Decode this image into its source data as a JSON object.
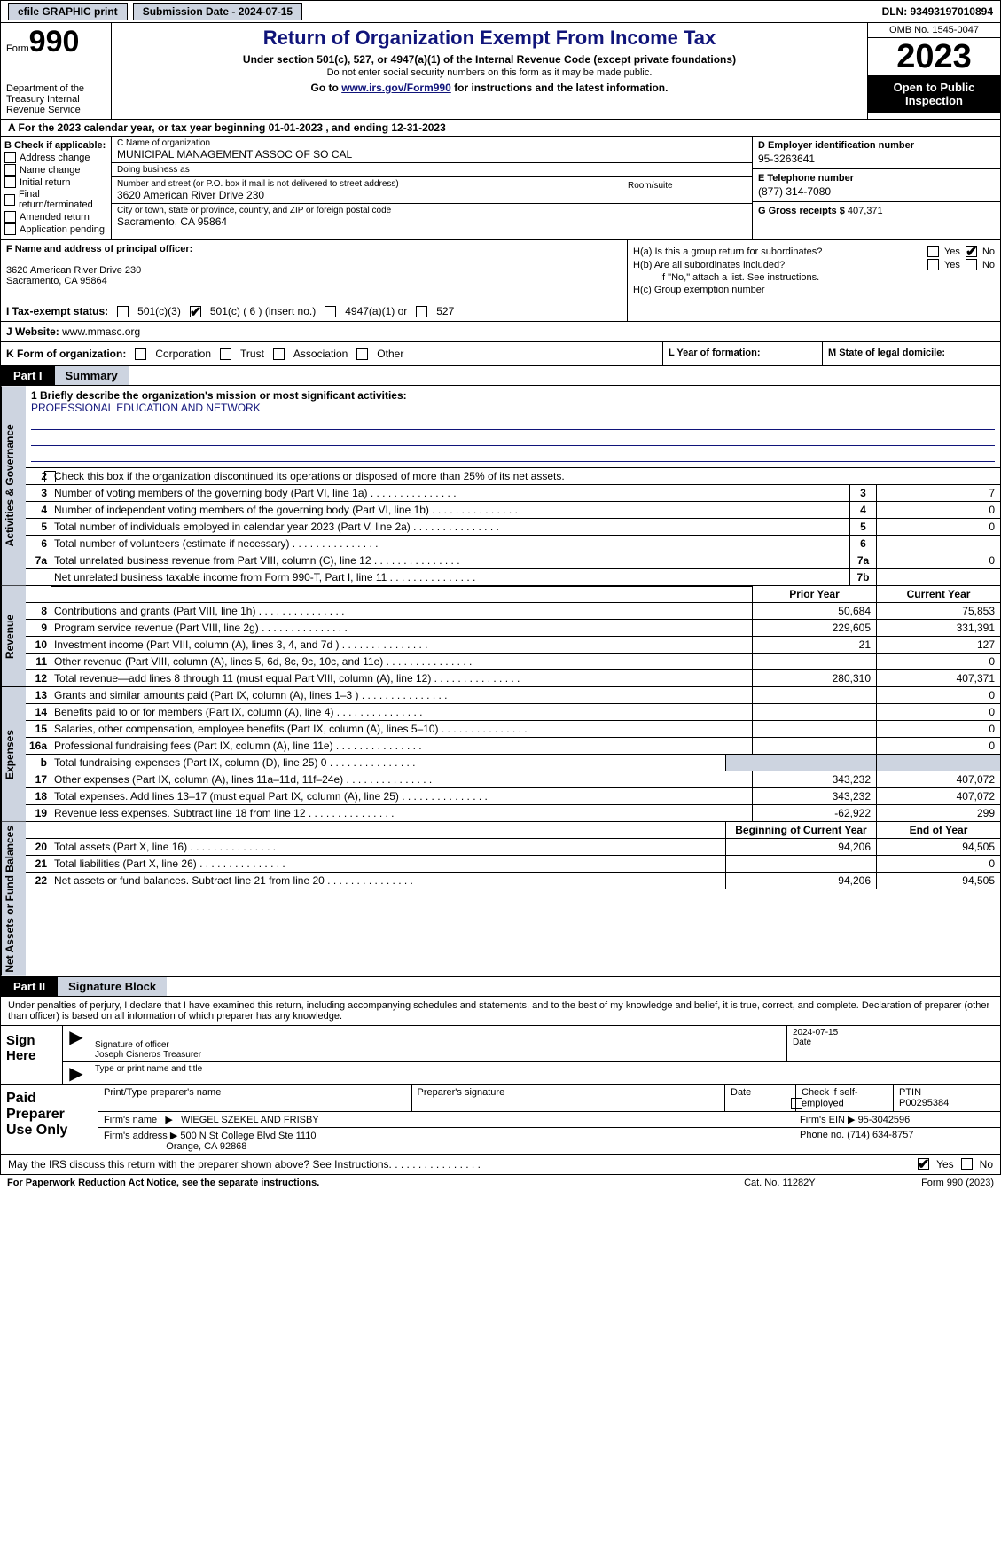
{
  "top": {
    "efile": "efile GRAPHIC print",
    "submission": "Submission Date - 2024-07-15",
    "dln": "DLN: 93493197010894"
  },
  "header": {
    "form_label": "Form",
    "form_num": "990",
    "dept": "Department of the Treasury\nInternal Revenue Service",
    "title": "Return of Organization Exempt From Income Tax",
    "sub": "Under section 501(c), 527, or 4947(a)(1) of the Internal Revenue Code (except private foundations)",
    "note": "Do not enter social security numbers on this form as it may be made public.",
    "goto_pre": "Go to ",
    "goto_link": "www.irs.gov/Form990",
    "goto_post": " for instructions and the latest information.",
    "omb": "OMB No. 1545-0047",
    "year": "2023",
    "opi": "Open to Public Inspection"
  },
  "row_a": "A  For the 2023 calendar year, or tax year beginning 01-01-2023    , and ending 12-31-2023",
  "col_b": {
    "hdr": "B Check if applicable:",
    "items": [
      "Address change",
      "Name change",
      "Initial return",
      "Final return/terminated",
      "Amended return",
      "Application pending"
    ]
  },
  "col_c": {
    "name_hint": "C Name of organization",
    "name": "MUNICIPAL MANAGEMENT ASSOC OF SO CAL",
    "dba_hint": "Doing business as",
    "dba": "",
    "street_hint": "Number and street (or P.O. box if mail is not delivered to street address)",
    "street": "3620 American River Drive 230",
    "room_hint": "Room/suite",
    "city_hint": "City or town, state or province, country, and ZIP or foreign postal code",
    "city": "Sacramento, CA  95864"
  },
  "col_d": {
    "ein_lbl": "D Employer identification number",
    "ein": "95-3263641",
    "tel_lbl": "E Telephone number",
    "tel": "(877) 314-7080",
    "gross_lbl": "G Gross receipts $ ",
    "gross": "407,371"
  },
  "block_f": {
    "lbl": "F  Name and address of principal officer:",
    "addr1": "3620 American River Drive 230",
    "addr2": "Sacramento, CA  95864"
  },
  "block_h": {
    "ha": "H(a)  Is this a group return for subordinates?",
    "hb": "H(b)  Are all subordinates included?",
    "hb_note": "If \"No,\" attach a list. See instructions.",
    "hc": "H(c)  Group exemption number",
    "yes": "Yes",
    "no": "No"
  },
  "row_i": {
    "lbl": "I   Tax-exempt status:",
    "o1": "501(c)(3)",
    "o2": "501(c) ( 6 ) (insert no.)",
    "o3": "4947(a)(1) or",
    "o4": "527"
  },
  "row_j": {
    "lbl": "J   Website:",
    "val": " www.mmasc.org"
  },
  "row_k": {
    "lbl": "K Form of organization:",
    "o1": "Corporation",
    "o2": "Trust",
    "o3": "Association",
    "o4": "Other"
  },
  "row_l": "L Year of formation:",
  "row_m": "M State of legal domicile:",
  "part1": {
    "tag": "Part I",
    "name": "Summary"
  },
  "part2": {
    "tag": "Part II",
    "name": "Signature Block"
  },
  "vtabs": {
    "ag": "Activities & Governance",
    "rev": "Revenue",
    "exp": "Expenses",
    "net": "Net Assets or Fund Balances"
  },
  "mission_lbl": "1   Briefly describe the organization's mission or most significant activities:",
  "mission": "PROFESSIONAL EDUCATION AND NETWORK",
  "line2": "Check this box         if the organization discontinued its operations or disposed of more than 25% of its net assets.",
  "lines_ag": [
    {
      "n": "3",
      "d": "Number of voting members of the governing body (Part VI, line 1a)",
      "c": "3",
      "v": "7"
    },
    {
      "n": "4",
      "d": "Number of independent voting members of the governing body (Part VI, line 1b)",
      "c": "4",
      "v": "0"
    },
    {
      "n": "5",
      "d": "Total number of individuals employed in calendar year 2023 (Part V, line 2a)",
      "c": "5",
      "v": "0"
    },
    {
      "n": "6",
      "d": "Total number of volunteers (estimate if necessary)",
      "c": "6",
      "v": ""
    },
    {
      "n": "7a",
      "d": "Total unrelated business revenue from Part VIII, column (C), line 12",
      "c": "7a",
      "v": "0"
    },
    {
      "n": "",
      "d": "Net unrelated business taxable income from Form 990-T, Part I, line 11",
      "c": "7b",
      "v": ""
    }
  ],
  "rev_hdr": {
    "py": "Prior Year",
    "cy": "Current Year"
  },
  "lines_rev": [
    {
      "n": "8",
      "d": "Contributions and grants (Part VIII, line 1h)",
      "py": "50,684",
      "cy": "75,853"
    },
    {
      "n": "9",
      "d": "Program service revenue (Part VIII, line 2g)",
      "py": "229,605",
      "cy": "331,391"
    },
    {
      "n": "10",
      "d": "Investment income (Part VIII, column (A), lines 3, 4, and 7d )",
      "py": "21",
      "cy": "127"
    },
    {
      "n": "11",
      "d": "Other revenue (Part VIII, column (A), lines 5, 6d, 8c, 9c, 10c, and 11e)",
      "py": "",
      "cy": "0"
    },
    {
      "n": "12",
      "d": "Total revenue—add lines 8 through 11 (must equal Part VIII, column (A), line 12)",
      "py": "280,310",
      "cy": "407,371"
    }
  ],
  "lines_exp": [
    {
      "n": "13",
      "d": "Grants and similar amounts paid (Part IX, column (A), lines 1–3 )",
      "py": "",
      "cy": "0"
    },
    {
      "n": "14",
      "d": "Benefits paid to or for members (Part IX, column (A), line 4)",
      "py": "",
      "cy": "0"
    },
    {
      "n": "15",
      "d": "Salaries, other compensation, employee benefits (Part IX, column (A), lines 5–10)",
      "py": "",
      "cy": "0"
    },
    {
      "n": "16a",
      "d": "Professional fundraising fees (Part IX, column (A), line 11e)",
      "py": "",
      "cy": "0"
    },
    {
      "n": "b",
      "d": "Total fundraising expenses (Part IX, column (D), line 25) 0",
      "py": "__blank__",
      "cy": "__blank__"
    },
    {
      "n": "17",
      "d": "Other expenses (Part IX, column (A), lines 11a–11d, 11f–24e)",
      "py": "343,232",
      "cy": "407,072"
    },
    {
      "n": "18",
      "d": "Total expenses. Add lines 13–17 (must equal Part IX, column (A), line 25)",
      "py": "343,232",
      "cy": "407,072"
    },
    {
      "n": "19",
      "d": "Revenue less expenses. Subtract line 18 from line 12",
      "py": "-62,922",
      "cy": "299"
    }
  ],
  "net_hdr": {
    "py": "Beginning of Current Year",
    "cy": "End of Year"
  },
  "lines_net": [
    {
      "n": "20",
      "d": "Total assets (Part X, line 16)",
      "py": "94,206",
      "cy": "94,505"
    },
    {
      "n": "21",
      "d": "Total liabilities (Part X, line 26)",
      "py": "",
      "cy": "0"
    },
    {
      "n": "22",
      "d": "Net assets or fund balances. Subtract line 21 from line 20",
      "py": "94,206",
      "cy": "94,505"
    }
  ],
  "sig_text": "Under penalties of perjury, I declare that I have examined this return, including accompanying schedules and statements, and to the best of my knowledge and belief, it is true, correct, and complete. Declaration of preparer (other than officer) is based on all information of which preparer has any knowledge.",
  "sign": {
    "lbl": "Sign Here",
    "date": "2024-07-15",
    "sig_lbl": "Signature of officer",
    "officer": "Joseph Cisneros  Treasurer",
    "type_lbl": "Type or print name and title",
    "date_lbl": "Date"
  },
  "prep": {
    "lbl": "Paid Preparer Use Only",
    "h1": "Print/Type preparer's name",
    "h2": "Preparer's signature",
    "h3": "Date",
    "h4": "Check         if self-employed",
    "h5": "PTIN",
    "ptin": "P00295384",
    "firm_lbl": "Firm's name",
    "firm": "WIEGEL SZEKEL AND FRISBY",
    "ein_lbl": "Firm's EIN",
    "ein": "95-3042596",
    "addr_lbl": "Firm's address",
    "addr1": "500 N St College Blvd Ste 1110",
    "addr2": "Orange, CA  92868",
    "phone_lbl": "Phone no.",
    "phone": "(714) 634-8757"
  },
  "irs_q": "May the IRS discuss this return with the preparer shown above? See Instructions.",
  "footer": {
    "l": "For Paperwork Reduction Act Notice, see the separate instructions.",
    "m": "Cat. No. 11282Y",
    "r": "Form 990 (2023)"
  }
}
